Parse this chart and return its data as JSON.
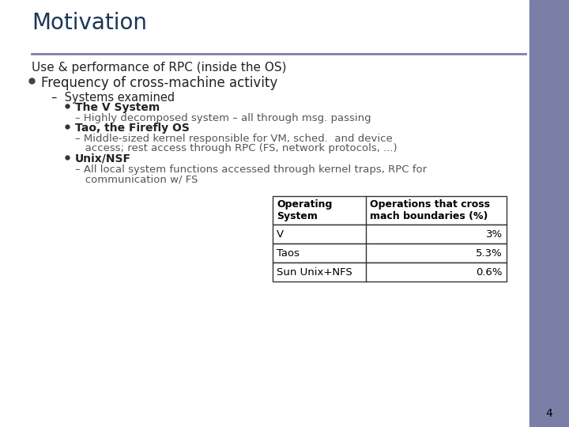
{
  "title": "Motivation",
  "title_color": "#1C3557",
  "bg_color": "#FFFFFF",
  "right_bar_color": "#7B7FA8",
  "line_color": "#7B7FA8",
  "slide_number": "4",
  "content": {
    "line1": "Use & performance of RPC (inside the OS)",
    "bullet1": "Frequency of cross-machine activity",
    "dash1": "Systems examined",
    "sub1_bold": "The V System",
    "sub1_text": "– Highly decomposed system – all through msg. passing",
    "sub2_bold": "Tao, the Firefly OS",
    "sub2_text1": "– Middle-sized kernel responsible for VM, sched.  and device",
    "sub2_text2": "   access; rest access through RPC (FS, network protocols, ...)",
    "sub3_bold": "Unix/NSF",
    "sub3_text1": "– All local system functions accessed through kernel traps, RPC for",
    "sub3_text2": "   communication w/ FS"
  },
  "table": {
    "col1_header": "Operating\nSystem",
    "col2_header": "Operations that cross\nmach boundaries (%)",
    "rows": [
      [
        "V",
        "3%"
      ],
      [
        "Taos",
        "5.3%"
      ],
      [
        "Sun Unix+NFS",
        "0.6%"
      ]
    ]
  }
}
